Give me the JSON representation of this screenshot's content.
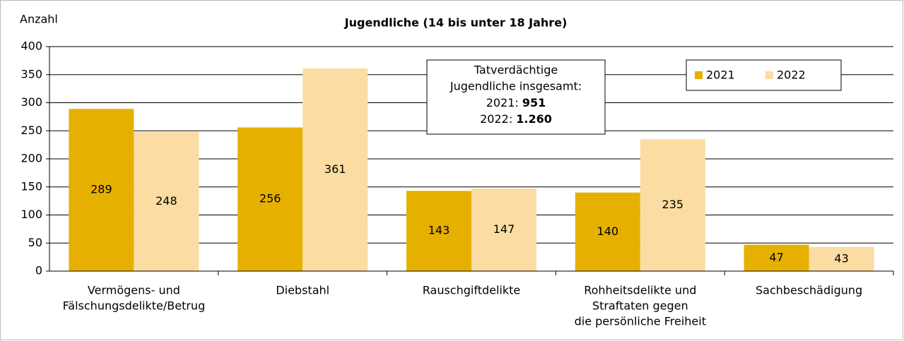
{
  "chart_data": {
    "type": "bar",
    "title": "Jugendliche (14 bis unter 18 Jahre)",
    "y_label": "Anzahl",
    "categories": [
      [
        "Vermögens- und",
        "Fälschungsdelikte/Betrug"
      ],
      [
        "Diebstahl"
      ],
      [
        "Rauschgiftdelikte"
      ],
      [
        "Rohheitsdelikte und",
        "Straftaten gegen",
        "die persönliche Freiheit"
      ],
      [
        "Sachbeschädigung"
      ]
    ],
    "series": [
      {
        "name": "2021",
        "color": "#e6b000",
        "values": [
          289,
          256,
          143,
          140,
          47
        ]
      },
      {
        "name": "2022",
        "color": "#fbdca2",
        "values": [
          248,
          361,
          147,
          235,
          43
        ]
      }
    ],
    "ylim": [
      0,
      400
    ],
    "yticks": [
      0,
      50,
      100,
      150,
      200,
      250,
      300,
      350,
      400
    ],
    "grid": true,
    "legend": "top-right",
    "annotation": {
      "text": [
        "Tatverdächtige",
        "Jugendliche insgesamt:"
      ],
      "total_names": [
        "2021:",
        "2022:"
      ],
      "totals": [
        951,
        1260
      ],
      "totals_labels": [
        "951",
        "1.260"
      ]
    }
  }
}
